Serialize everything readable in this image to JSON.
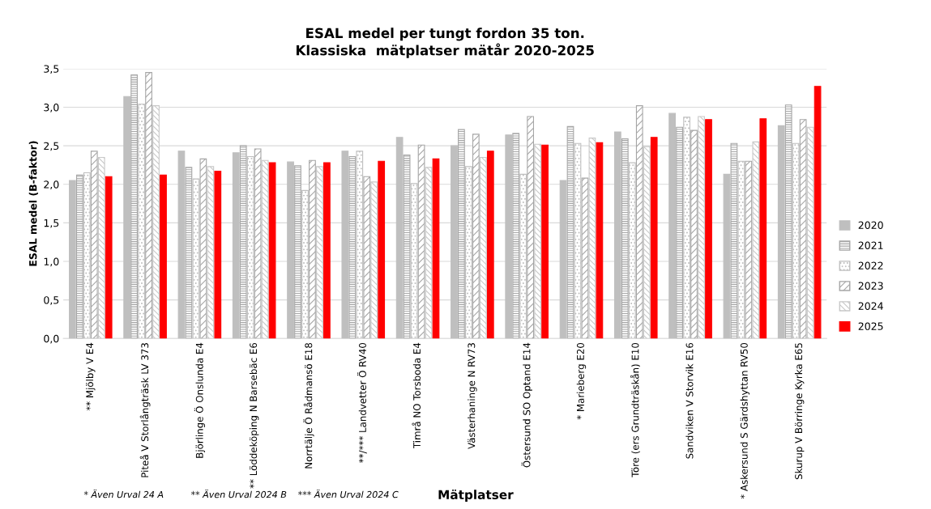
{
  "chart_data": {
    "type": "bar",
    "title": "ESAL medel per tungt fordon 35 ton.\nKlassiska  mätplatser mätår 2020-2025",
    "ylabel": "ESAL medel (B-faktor)",
    "xlabel": "Mätplatser",
    "categories": [
      "** Mjölby V E4",
      "Piteå V Storlångträsk LV 373",
      "Björlinge Ö Onslunda E4",
      "** Löddeköping N Barsebäc E6",
      "Norrtälje Ö Rådmansö E18",
      "**/*** Landvetter Ö RV40",
      "Timrå NO Torsboda E4",
      "Västerhaninge N RV73",
      "Östersund SO Optand E14",
      "* Marieberg E20",
      "Töre (ers Grundträskån) E10",
      "Sandviken V Storvik E16",
      "* Askersund S Gärdshyttan RV50",
      "Skurup V Börringe Kyrka E65"
    ],
    "series": [
      {
        "name": "2020",
        "color": "#bfbfbf",
        "values": [
          2.05,
          3.14,
          2.43,
          2.41,
          2.29,
          2.43,
          2.61,
          2.5,
          2.64,
          2.05,
          2.68,
          2.92,
          2.13,
          2.76
        ]
      },
      {
        "name": "2021",
        "color": "#a6a6a6",
        "values": [
          2.12,
          3.42,
          2.22,
          2.5,
          2.24,
          2.36,
          2.38,
          2.71,
          2.66,
          2.75,
          2.59,
          2.74,
          2.53,
          3.03
        ]
      },
      {
        "name": "2022",
        "color": "#bfbfbf",
        "values": [
          2.15,
          3.04,
          2.07,
          2.36,
          1.92,
          2.43,
          2.01,
          2.23,
          2.13,
          2.53,
          2.28,
          2.87,
          2.3,
          2.53
        ]
      },
      {
        "name": "2023",
        "color": "#a6a6a6",
        "values": [
          2.43,
          3.45,
          2.33,
          2.46,
          2.31,
          2.1,
          2.51,
          2.65,
          2.88,
          2.08,
          3.02,
          2.7,
          2.3,
          2.84
        ]
      },
      {
        "name": "2024",
        "color": "#c8c8c8",
        "values": [
          2.35,
          3.02,
          2.23,
          2.31,
          2.23,
          2.03,
          2.22,
          2.35,
          2.52,
          2.6,
          2.49,
          2.88,
          2.55,
          2.74
        ]
      },
      {
        "name": "2025",
        "color": "#ff0000",
        "values": [
          2.1,
          2.12,
          2.17,
          2.28,
          2.28,
          2.3,
          2.33,
          2.43,
          2.51,
          2.54,
          2.61,
          2.84,
          2.85,
          3.27
        ]
      }
    ],
    "ylim": [
      0,
      3.5
    ],
    "yticks": [
      {
        "value": 0,
        "label": "0,0"
      },
      {
        "value": 0.5,
        "label": "0,5"
      },
      {
        "value": 1,
        "label": "1,0"
      },
      {
        "value": 1.5,
        "label": "1,5"
      },
      {
        "value": 2,
        "label": "2,0"
      },
      {
        "value": 2.5,
        "label": "2,5"
      },
      {
        "value": 3,
        "label": "3,0"
      },
      {
        "value": 3.5,
        "label": "3,5"
      }
    ],
    "grid": "y",
    "legend": "right",
    "annotations": [
      "* Även Urval 24 A",
      "** Även Urval 2024 B",
      "*** Även Urval 2024 C"
    ]
  }
}
